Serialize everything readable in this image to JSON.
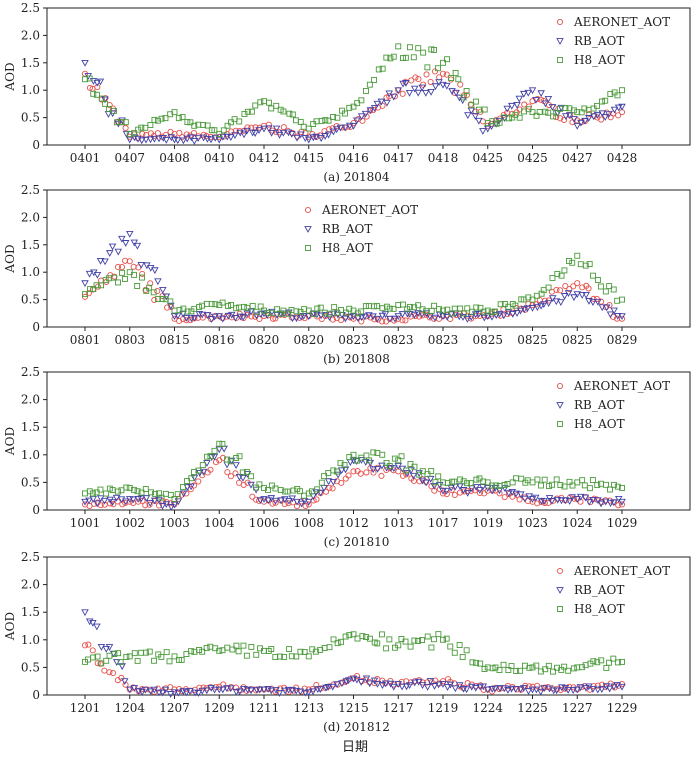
{
  "figure": {
    "xlabel": "日期"
  },
  "legend_labels": [
    "AERONET_AOT",
    "RB_AOT",
    "H8_AOT"
  ],
  "colors": {
    "AERONET_AOT": "#e8504a",
    "RB_AOT": "#4040a8",
    "H8_AOT": "#4a9a3a"
  },
  "chart_data": [
    {
      "type": "scatter",
      "caption": "(a) 201804",
      "ylabel": "AOD",
      "ylim": [
        0,
        2.5
      ],
      "yticks": [
        0,
        0.5,
        1.0,
        1.5,
        2.0,
        2.5
      ],
      "ytick_labels": [
        "0",
        "0.5",
        "1.0",
        "1.5",
        "2.0",
        "2.5"
      ],
      "categories": [
        "0401",
        "0407",
        "0408",
        "0410",
        "0412",
        "0415",
        "0416",
        "0417",
        "0418",
        "0425",
        "0425",
        "0427",
        "0428"
      ],
      "legend_placement": "top-right",
      "series": [
        {
          "name": "AERONET_AOT",
          "values": [
            1.3,
            0.15,
            0.2,
            0.15,
            0.35,
            0.15,
            0.4,
            1.0,
            1.3,
            0.35,
            0.8,
            0.45,
            0.6
          ]
        },
        {
          "name": "RB_AOT",
          "values": [
            1.5,
            0.1,
            0.1,
            0.1,
            0.3,
            0.1,
            0.35,
            1.0,
            1.1,
            0.3,
            1.0,
            0.35,
            0.7
          ]
        },
        {
          "name": "H8_AOT",
          "values": [
            1.2,
            0.2,
            0.6,
            0.2,
            0.8,
            0.3,
            0.7,
            1.8,
            1.5,
            0.4,
            0.6,
            0.6,
            1.0
          ]
        }
      ]
    },
    {
      "type": "scatter",
      "caption": "(b) 201808",
      "ylabel": "AOD",
      "ylim": [
        0,
        2.5
      ],
      "yticks": [
        0,
        0.5,
        1.0,
        1.5,
        2.0,
        2.5
      ],
      "ytick_labels": [
        "0",
        "0.5",
        "1.0",
        "1.5",
        "2.0",
        "2.5"
      ],
      "categories": [
        "0801",
        "0803",
        "0815",
        "0816",
        "0820",
        "0820",
        "0823",
        "0823",
        "0823",
        "0825",
        "0825",
        "0825",
        "0829"
      ],
      "legend_placement": "top-center",
      "series": [
        {
          "name": "AERONET_AOT",
          "values": [
            0.55,
            1.2,
            0.15,
            0.2,
            0.2,
            0.2,
            0.15,
            0.15,
            0.2,
            0.2,
            0.4,
            0.8,
            0.15
          ]
        },
        {
          "name": "RB_AOT",
          "values": [
            0.8,
            1.7,
            0.2,
            0.2,
            0.25,
            0.2,
            0.2,
            0.2,
            0.2,
            0.2,
            0.35,
            0.6,
            0.2
          ]
        },
        {
          "name": "H8_AOT",
          "values": [
            0.6,
            1.0,
            0.3,
            0.4,
            0.3,
            0.3,
            0.3,
            0.4,
            0.3,
            0.3,
            0.5,
            1.3,
            0.5
          ]
        }
      ]
    },
    {
      "type": "scatter",
      "caption": "(c) 201810",
      "ylabel": "AOD",
      "ylim": [
        0,
        2.5
      ],
      "yticks": [
        0,
        0.5,
        1.0,
        1.5,
        2.0,
        2.5
      ],
      "ytick_labels": [
        "0",
        "0.5",
        "1.0",
        "1.5",
        "2.0",
        "2.5"
      ],
      "categories": [
        "1001",
        "1002",
        "1003",
        "1004",
        "1006",
        "1008",
        "1012",
        "1013",
        "1017",
        "1019",
        "1023",
        "1024",
        "1029"
      ],
      "legend_placement": "top-right",
      "series": [
        {
          "name": "AERONET_AOT",
          "values": [
            0.1,
            0.15,
            0.1,
            0.9,
            0.15,
            0.1,
            0.7,
            0.7,
            0.3,
            0.35,
            0.15,
            0.2,
            0.1
          ]
        },
        {
          "name": "RB_AOT",
          "values": [
            0.15,
            0.2,
            0.1,
            1.1,
            0.2,
            0.15,
            0.9,
            0.8,
            0.35,
            0.4,
            0.2,
            0.2,
            0.15
          ]
        },
        {
          "name": "H8_AOT",
          "values": [
            0.3,
            0.4,
            0.2,
            1.2,
            0.4,
            0.3,
            1.0,
            0.9,
            0.5,
            0.5,
            0.5,
            0.5,
            0.4
          ]
        }
      ]
    },
    {
      "type": "scatter",
      "caption": "(d) 201812",
      "ylabel": "AOD",
      "ylim": [
        0,
        2.5
      ],
      "yticks": [
        0,
        0.5,
        1.0,
        1.5,
        2.0,
        2.5
      ],
      "ytick_labels": [
        "0",
        "0.5",
        "1.0",
        "1.5",
        "2.0",
        "2.5"
      ],
      "categories": [
        "1201",
        "1204",
        "1207",
        "1209",
        "1211",
        "1213",
        "1215",
        "1217",
        "1219",
        "1224",
        "1225",
        "1227",
        "1229"
      ],
      "legend_placement": "top-right",
      "series": [
        {
          "name": "AERONET_AOT",
          "values": [
            0.9,
            0.1,
            0.1,
            0.15,
            0.1,
            0.1,
            0.3,
            0.2,
            0.25,
            0.1,
            0.15,
            0.1,
            0.2
          ]
        },
        {
          "name": "RB_AOT",
          "values": [
            1.5,
            0.1,
            0.05,
            0.1,
            0.1,
            0.05,
            0.3,
            0.2,
            0.2,
            0.1,
            0.1,
            0.1,
            0.15
          ]
        },
        {
          "name": "H8_AOT",
          "values": [
            0.6,
            0.7,
            0.7,
            0.8,
            0.8,
            0.7,
            1.1,
            0.9,
            1.0,
            0.5,
            0.5,
            0.5,
            0.6
          ]
        }
      ]
    }
  ]
}
